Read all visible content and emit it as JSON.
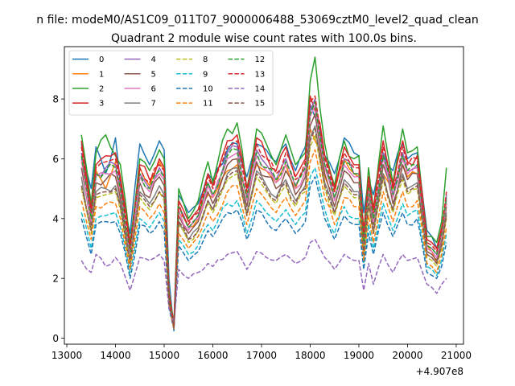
{
  "chart_data": {
    "type": "line",
    "suptitle": "n file: modeM0/AS1C09_011T07_9000006488_53069cztM0_level2_quad_clean",
    "title": "Quadrant 2 module wise count rates with 100.0s bins.",
    "xlabel": "",
    "ylabel": "",
    "x_offset_label": "+4.907e8",
    "xlim": [
      12950,
      21150
    ],
    "ylim": [
      -0.2,
      9.75
    ],
    "xticks": [
      13000,
      14000,
      15000,
      16000,
      17000,
      18000,
      19000,
      20000,
      21000
    ],
    "xtick_labels": [
      "13000",
      "14000",
      "15000",
      "16000",
      "17000",
      "18000",
      "19000",
      "20000",
      "21000"
    ],
    "yticks": [
      0,
      2,
      4,
      6,
      8
    ],
    "ytick_labels": [
      "0",
      "2",
      "4",
      "6",
      "8"
    ],
    "grid": false,
    "legend_position": "upper-left",
    "legend_columns": 4,
    "colors": [
      "#1f77b4",
      "#ff7f0e",
      "#2ca02c",
      "#d62728",
      "#9467bd",
      "#8c564b",
      "#e377c2",
      "#7f7f7f",
      "#bcbd22",
      "#17becf",
      "#1f77b4",
      "#ff7f0e",
      "#2ca02c",
      "#d62728",
      "#9467bd",
      "#8c564b"
    ],
    "x_start": 13300,
    "x_step": 100,
    "anchor_x": [
      13300,
      13500,
      13600,
      13800,
      14000,
      14100,
      14300,
      14500,
      14700,
      14900,
      15000,
      15100,
      15200,
      15300,
      15500,
      15700,
      15900,
      16000,
      16300,
      16500,
      16700,
      16900,
      17100,
      17300,
      17500,
      17700,
      17900,
      18000,
      18100,
      18200,
      18300,
      18500,
      18700,
      18900,
      19000,
      19100,
      19200,
      19300,
      19500,
      19700,
      19900,
      20000,
      20200,
      20400,
      20500,
      20600,
      20700,
      20800
    ],
    "series": [
      {
        "name": "0",
        "style": "solid",
        "anchors": [
          6.5,
          5.0,
          6.4,
          5.5,
          6.7,
          5.2,
          3.5,
          6.5,
          5.8,
          6.6,
          6.3,
          2.0,
          0.25,
          4.8,
          4.2,
          4.5,
          5.5,
          5.3,
          6.3,
          6.5,
          5.4,
          6.5,
          6.3,
          5.9,
          6.5,
          5.6,
          6.4,
          7.8,
          7.4,
          7.0,
          6.1,
          5.5,
          6.7,
          6.2,
          6.1,
          4.2,
          5.3,
          4.8,
          6.2,
          5.6,
          6.5,
          6.0,
          6.2,
          3.6,
          3.4,
          3.0,
          3.6,
          4.7
        ]
      },
      {
        "name": "1",
        "style": "solid",
        "anchors": [
          5.9,
          4.3,
          5.6,
          5.0,
          5.9,
          4.6,
          3.0,
          5.7,
          5.1,
          5.9,
          5.6,
          1.6,
          0.4,
          4.2,
          3.7,
          4.0,
          4.8,
          4.7,
          5.6,
          5.8,
          4.8,
          5.8,
          5.6,
          5.2,
          5.8,
          5.0,
          5.7,
          7.0,
          6.6,
          6.3,
          5.4,
          4.9,
          6.0,
          5.5,
          5.4,
          3.7,
          4.7,
          4.3,
          5.5,
          5.0,
          5.8,
          5.4,
          5.5,
          3.1,
          2.9,
          2.5,
          3.1,
          4.1
        ]
      },
      {
        "name": "2",
        "style": "solid",
        "anchors": [
          6.8,
          4.5,
          6.2,
          6.8,
          6.1,
          5.8,
          3.2,
          6.0,
          5.6,
          6.3,
          6.0,
          1.5,
          0.5,
          5.0,
          4.0,
          4.6,
          5.9,
          5.2,
          7.0,
          7.2,
          5.0,
          7.0,
          6.5,
          5.8,
          6.8,
          5.8,
          6.2,
          8.6,
          9.4,
          7.7,
          6.5,
          5.1,
          6.6,
          6.0,
          6.1,
          3.5,
          5.7,
          4.3,
          7.1,
          5.2,
          7.0,
          6.2,
          6.4,
          3.4,
          3.4,
          3.2,
          3.9,
          5.7
        ]
      },
      {
        "name": "3",
        "style": "solid",
        "anchors": [
          6.6,
          4.3,
          5.8,
          6.1,
          6.2,
          5.4,
          3.1,
          5.8,
          5.3,
          6.0,
          5.7,
          1.5,
          0.45,
          4.6,
          3.9,
          4.3,
          5.5,
          5.1,
          6.6,
          6.8,
          5.0,
          6.7,
          6.1,
          5.6,
          6.4,
          5.4,
          6.0,
          8.1,
          7.6,
          7.2,
          6.1,
          5.0,
          6.4,
          5.8,
          5.8,
          3.5,
          5.4,
          4.3,
          6.6,
          5.1,
          6.6,
          5.9,
          6.1,
          3.3,
          3.2,
          3.0,
          3.7,
          4.5
        ]
      },
      {
        "name": "4",
        "style": "solid",
        "anchors": [
          6.2,
          4.1,
          5.5,
          5.7,
          5.8,
          5.0,
          2.9,
          5.5,
          5.0,
          5.7,
          5.4,
          1.4,
          0.4,
          4.4,
          3.7,
          4.1,
          5.2,
          4.8,
          6.2,
          6.4,
          4.7,
          6.3,
          5.8,
          5.3,
          6.0,
          5.1,
          5.7,
          7.6,
          8.0,
          6.8,
          5.8,
          4.7,
          6.0,
          5.5,
          5.5,
          3.3,
          5.1,
          4.0,
          6.2,
          4.8,
          6.2,
          5.6,
          5.8,
          3.1,
          3.0,
          2.8,
          3.5,
          4.8
        ]
      },
      {
        "name": "5",
        "style": "solid",
        "anchors": [
          5.7,
          3.8,
          5.2,
          5.3,
          5.4,
          4.7,
          2.7,
          5.2,
          4.7,
          5.4,
          5.1,
          1.3,
          0.35,
          4.1,
          3.5,
          3.9,
          4.9,
          4.5,
          5.8,
          6.0,
          4.4,
          5.9,
          5.4,
          5.0,
          5.6,
          4.8,
          5.4,
          7.1,
          7.5,
          6.4,
          5.5,
          4.4,
          5.6,
          5.2,
          5.2,
          3.1,
          4.8,
          3.8,
          5.8,
          4.5,
          5.8,
          5.3,
          5.5,
          2.9,
          2.8,
          2.6,
          3.3,
          4.4
        ]
      },
      {
        "name": "6",
        "style": "solid",
        "anchors": [
          6.0,
          3.9,
          5.4,
          5.5,
          5.6,
          4.9,
          2.8,
          5.4,
          4.9,
          5.5,
          5.3,
          1.35,
          0.4,
          4.3,
          3.6,
          4.0,
          5.1,
          4.7,
          6.0,
          6.2,
          4.6,
          6.1,
          5.6,
          5.2,
          5.8,
          5.0,
          5.6,
          7.4,
          7.8,
          6.6,
          5.7,
          4.6,
          5.8,
          5.4,
          5.4,
          3.2,
          5.0,
          3.9,
          6.0,
          4.7,
          6.0,
          5.5,
          5.7,
          3.0,
          2.9,
          2.7,
          3.4,
          4.6
        ]
      },
      {
        "name": "7",
        "style": "solid",
        "anchors": [
          5.4,
          3.6,
          4.9,
          5.0,
          5.1,
          4.5,
          2.6,
          4.9,
          4.5,
          5.1,
          4.8,
          1.25,
          0.35,
          3.9,
          3.3,
          3.7,
          4.6,
          4.3,
          5.5,
          5.7,
          4.2,
          5.6,
          5.1,
          4.7,
          5.3,
          4.6,
          5.1,
          6.7,
          7.1,
          6.1,
          5.2,
          4.2,
          5.3,
          4.9,
          4.9,
          2.9,
          4.5,
          3.6,
          5.5,
          4.3,
          5.5,
          5.0,
          5.2,
          2.8,
          2.7,
          2.5,
          3.1,
          4.2
        ]
      },
      {
        "name": "8",
        "style": "dashed",
        "anchors": [
          5.0,
          3.5,
          4.7,
          4.8,
          4.9,
          4.3,
          2.5,
          4.7,
          4.3,
          4.9,
          4.6,
          1.2,
          0.3,
          3.8,
          3.2,
          3.6,
          4.5,
          4.2,
          5.3,
          5.5,
          4.1,
          5.4,
          4.9,
          4.5,
          5.1,
          4.4,
          4.9,
          6.4,
          6.8,
          5.9,
          5.0,
          4.1,
          5.1,
          4.7,
          4.7,
          2.8,
          4.4,
          3.5,
          5.3,
          4.2,
          5.3,
          4.8,
          5.0,
          2.7,
          2.6,
          2.4,
          3.0,
          4.0
        ]
      },
      {
        "name": "9",
        "style": "dashed",
        "anchors": [
          4.2,
          3.0,
          4.0,
          4.1,
          4.2,
          3.7,
          2.2,
          4.0,
          3.7,
          4.2,
          3.9,
          1.1,
          0.3,
          3.3,
          2.8,
          3.1,
          3.8,
          3.6,
          4.5,
          4.6,
          3.5,
          4.6,
          4.2,
          3.9,
          4.3,
          3.8,
          4.2,
          5.4,
          5.7,
          5.0,
          4.3,
          3.5,
          4.4,
          4.0,
          4.0,
          2.5,
          3.8,
          3.0,
          4.5,
          3.6,
          4.5,
          4.1,
          4.3,
          2.4,
          2.3,
          2.1,
          2.6,
          3.5
        ]
      },
      {
        "name": "10",
        "style": "dashed",
        "anchors": [
          4.0,
          2.8,
          3.8,
          3.9,
          3.9,
          3.5,
          2.0,
          3.8,
          3.5,
          3.9,
          3.6,
          1.0,
          0.3,
          3.1,
          2.6,
          2.9,
          3.6,
          3.4,
          4.2,
          4.3,
          3.3,
          4.3,
          3.9,
          3.6,
          4.0,
          3.5,
          3.9,
          5.1,
          5.4,
          4.7,
          4.0,
          3.3,
          4.1,
          3.8,
          3.8,
          2.3,
          3.5,
          2.8,
          4.2,
          3.4,
          4.2,
          3.8,
          4.0,
          2.2,
          2.1,
          2.0,
          2.4,
          3.2
        ]
      },
      {
        "name": "11",
        "style": "dashed",
        "anchors": [
          4.6,
          3.3,
          4.4,
          4.5,
          4.5,
          4.0,
          2.3,
          4.4,
          4.0,
          4.5,
          4.2,
          1.1,
          0.3,
          3.5,
          3.0,
          3.4,
          4.2,
          3.9,
          4.9,
          5.1,
          3.8,
          5.0,
          4.6,
          4.2,
          4.7,
          4.1,
          4.6,
          5.9,
          6.3,
          5.5,
          4.7,
          3.8,
          4.7,
          4.4,
          4.4,
          2.6,
          4.1,
          3.2,
          4.9,
          3.9,
          4.9,
          4.4,
          4.6,
          2.5,
          2.4,
          2.2,
          2.8,
          3.7
        ]
      },
      {
        "name": "12",
        "style": "dashed",
        "anchors": [
          6.1,
          4.0,
          5.5,
          5.6,
          5.7,
          5.0,
          2.9,
          5.5,
          5.0,
          5.6,
          5.4,
          1.4,
          0.4,
          4.4,
          3.7,
          4.1,
          5.2,
          4.8,
          6.1,
          6.3,
          4.7,
          6.2,
          5.7,
          5.3,
          5.9,
          5.1,
          5.7,
          7.5,
          7.9,
          6.7,
          5.8,
          4.7,
          5.9,
          5.5,
          5.5,
          3.2,
          5.1,
          4.0,
          6.1,
          4.8,
          6.1,
          5.6,
          5.8,
          3.1,
          3.0,
          2.8,
          3.5,
          4.7
        ]
      },
      {
        "name": "13",
        "style": "dashed",
        "anchors": [
          6.4,
          4.2,
          5.7,
          5.9,
          6.0,
          5.2,
          3.0,
          5.7,
          5.2,
          5.8,
          5.6,
          1.45,
          0.4,
          4.5,
          3.8,
          4.2,
          5.4,
          5.0,
          6.4,
          6.6,
          4.9,
          6.5,
          6.0,
          5.5,
          6.2,
          5.3,
          5.9,
          7.9,
          8.1,
          7.0,
          6.0,
          4.9,
          6.2,
          5.7,
          5.7,
          3.4,
          5.3,
          4.2,
          6.4,
          5.0,
          6.4,
          5.8,
          6.0,
          3.2,
          3.1,
          2.9,
          3.6,
          4.9
        ]
      },
      {
        "name": "14",
        "style": "dashed",
        "anchors": [
          2.6,
          2.2,
          2.8,
          2.4,
          2.7,
          2.5,
          1.6,
          2.7,
          2.6,
          2.8,
          2.6,
          1.0,
          0.5,
          2.3,
          2.0,
          2.2,
          2.5,
          2.4,
          2.8,
          2.9,
          2.3,
          2.9,
          2.7,
          2.6,
          2.8,
          2.5,
          2.7,
          3.2,
          3.3,
          3.0,
          2.7,
          2.3,
          2.8,
          2.6,
          2.6,
          1.6,
          2.5,
          1.8,
          2.8,
          2.2,
          2.8,
          2.6,
          2.7,
          1.8,
          1.7,
          1.5,
          1.8,
          2.0
        ]
      },
      {
        "name": "15",
        "style": "dashed",
        "anchors": [
          5.1,
          3.6,
          4.8,
          4.9,
          5.0,
          4.4,
          2.5,
          4.8,
          4.4,
          4.9,
          4.7,
          1.2,
          0.35,
          3.9,
          3.3,
          3.6,
          4.6,
          4.3,
          5.4,
          5.6,
          4.1,
          5.5,
          5.0,
          4.6,
          5.2,
          4.5,
          5.0,
          6.6,
          7.0,
          6.0,
          5.1,
          4.2,
          5.2,
          4.8,
          4.8,
          2.8,
          4.5,
          3.5,
          5.4,
          4.3,
          5.4,
          4.9,
          5.1,
          2.8,
          2.7,
          2.5,
          3.1,
          4.1
        ]
      }
    ]
  }
}
